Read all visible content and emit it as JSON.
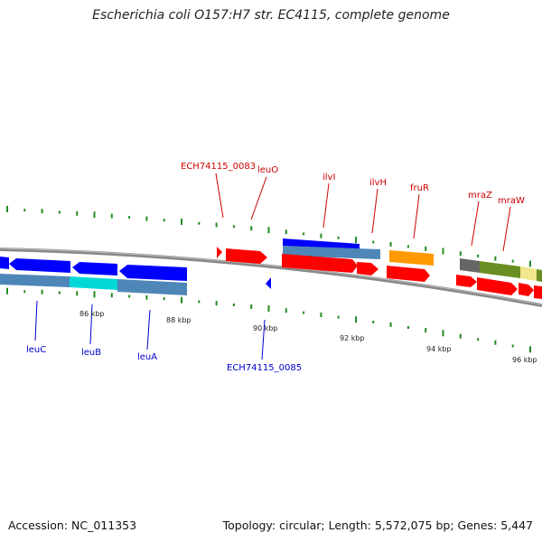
{
  "title": "Escherichia coli O157:H7 str. EC4115, complete genome",
  "accession": "Accession: NC_011353",
  "summary": "Topology: circular; Length: 5,572,075 bp; Genes: 5,447",
  "colors": {
    "forward_gene": "#ff0000",
    "reverse_gene": "#0000ff",
    "feature_steelblue": "#4f86b8",
    "feature_cyan": "#00e5e5",
    "feature_orange": "#ff9900",
    "feature_olive": "#6b8e23",
    "feature_yellow": "#f0e68c",
    "feature_gray": "#666666",
    "gc_tick": "#228b22",
    "backbone": "#888888"
  },
  "kbp_labels": [
    "86 kbp",
    "88 kbp",
    "90 kbp",
    "92 kbp",
    "94 kbp",
    "96 kbp"
  ],
  "gene_labels": {
    "forward": [
      "ECH74115_0083",
      "leuO",
      "ilvI",
      "ilvH",
      "fruR",
      "mraZ",
      "mraW"
    ],
    "reverse": [
      "leuC",
      "leuB",
      "leuA",
      "ECH74115_0085"
    ]
  }
}
